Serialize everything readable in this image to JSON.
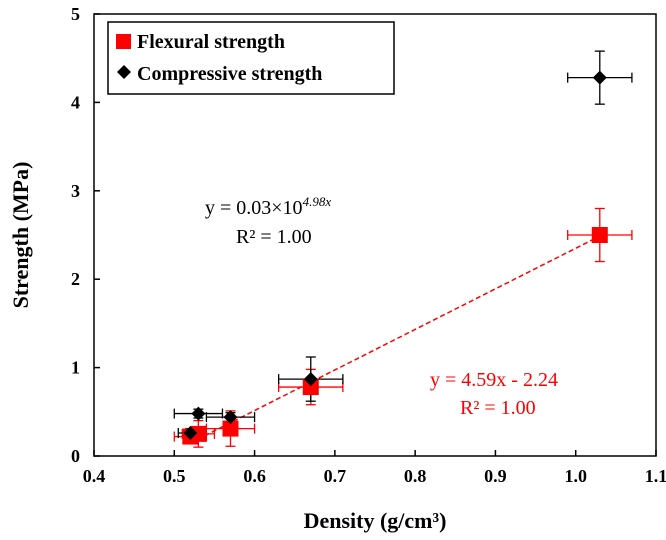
{
  "chart_data": {
    "type": "scatter",
    "xlabel": "Density  (g/cm³)",
    "ylabel": "Strength (MPa)",
    "xlim": [
      0.4,
      1.1
    ],
    "ylim": [
      0,
      5
    ],
    "x_ticks": [
      "0.4",
      "0.5",
      "0.6",
      "0.7",
      "0.8",
      "0.9",
      "1.0",
      "1.1"
    ],
    "y_ticks": [
      "0",
      "1",
      "2",
      "3",
      "4",
      "5"
    ],
    "grid": false,
    "legend": "top-left",
    "series": [
      {
        "name": "Flexural strength",
        "marker": "square",
        "color": "#ff0000",
        "points": [
          {
            "x": 0.52,
            "y": 0.22,
            "xerr": 0.02,
            "yerr": 0.06
          },
          {
            "x": 0.53,
            "y": 0.25,
            "xerr": 0.02,
            "yerr": 0.15
          },
          {
            "x": 0.57,
            "y": 0.31,
            "xerr": 0.03,
            "yerr": 0.2
          },
          {
            "x": 0.67,
            "y": 0.78,
            "xerr": 0.04,
            "yerr": 0.2
          },
          {
            "x": 1.03,
            "y": 2.5,
            "xerr": 0.04,
            "yerr": 0.3
          }
        ],
        "trend": {
          "kind": "linear",
          "slope": 4.59,
          "intercept": -2.24
        }
      },
      {
        "name": "Compressive strength",
        "marker": "diamond",
        "color": "#000000",
        "points": [
          {
            "x": 0.52,
            "y": 0.26,
            "xerr": 0.015,
            "yerr": 0.05
          },
          {
            "x": 0.53,
            "y": 0.48,
            "xerr": 0.03,
            "yerr": 0.05
          },
          {
            "x": 0.57,
            "y": 0.44,
            "xerr": 0.03,
            "yerr": 0.05
          },
          {
            "x": 0.67,
            "y": 0.87,
            "xerr": 0.04,
            "yerr": 0.25
          },
          {
            "x": 1.03,
            "y": 4.28,
            "xerr": 0.04,
            "yerr": 0.3
          }
        ],
        "trend": {
          "kind": "exponential",
          "a": 0.03,
          "b": 4.98
        }
      }
    ],
    "annotations": {
      "compressive_eq_prefix": "y = 0.03×10",
      "compressive_eq_exp": "4.98x",
      "compressive_r2": "R² = 1.00",
      "flexural_eq": "y = 4.59x - 2.24",
      "flexural_r2": "R² = 1.00"
    }
  }
}
